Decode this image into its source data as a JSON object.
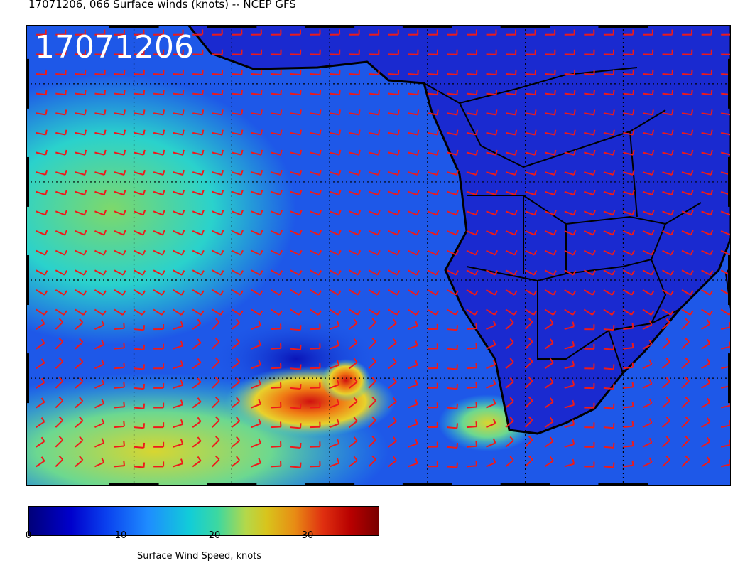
{
  "title": "17071206, 066 Surface winds (knots) -- NCEP GFS",
  "date_stamp": "17071206",
  "map": {
    "lon_range": [
      -31,
      41
    ],
    "lat_range": [
      -41,
      6
    ],
    "lon_ticks": [
      -20,
      -10,
      0,
      10,
      20,
      30
    ],
    "lat_ticks": [
      0,
      -10,
      -20,
      -30
    ],
    "gridline_style": "dotted",
    "ocean_color": "#1e58e8",
    "land_color": "#1a2ad0",
    "barb_color": "#ee1a1a",
    "coast_color": "#000000"
  },
  "colorbar": {
    "range": [
      0,
      38
    ],
    "ticks": [
      "0",
      "10",
      "20",
      "30"
    ],
    "label": "Surface Wind Speed, knots",
    "colors": [
      "#00007a",
      "#0000cc",
      "#1e8cff",
      "#12cdd8",
      "#b4d84a",
      "#d8c41c",
      "#e03010",
      "#7a0000"
    ]
  }
}
